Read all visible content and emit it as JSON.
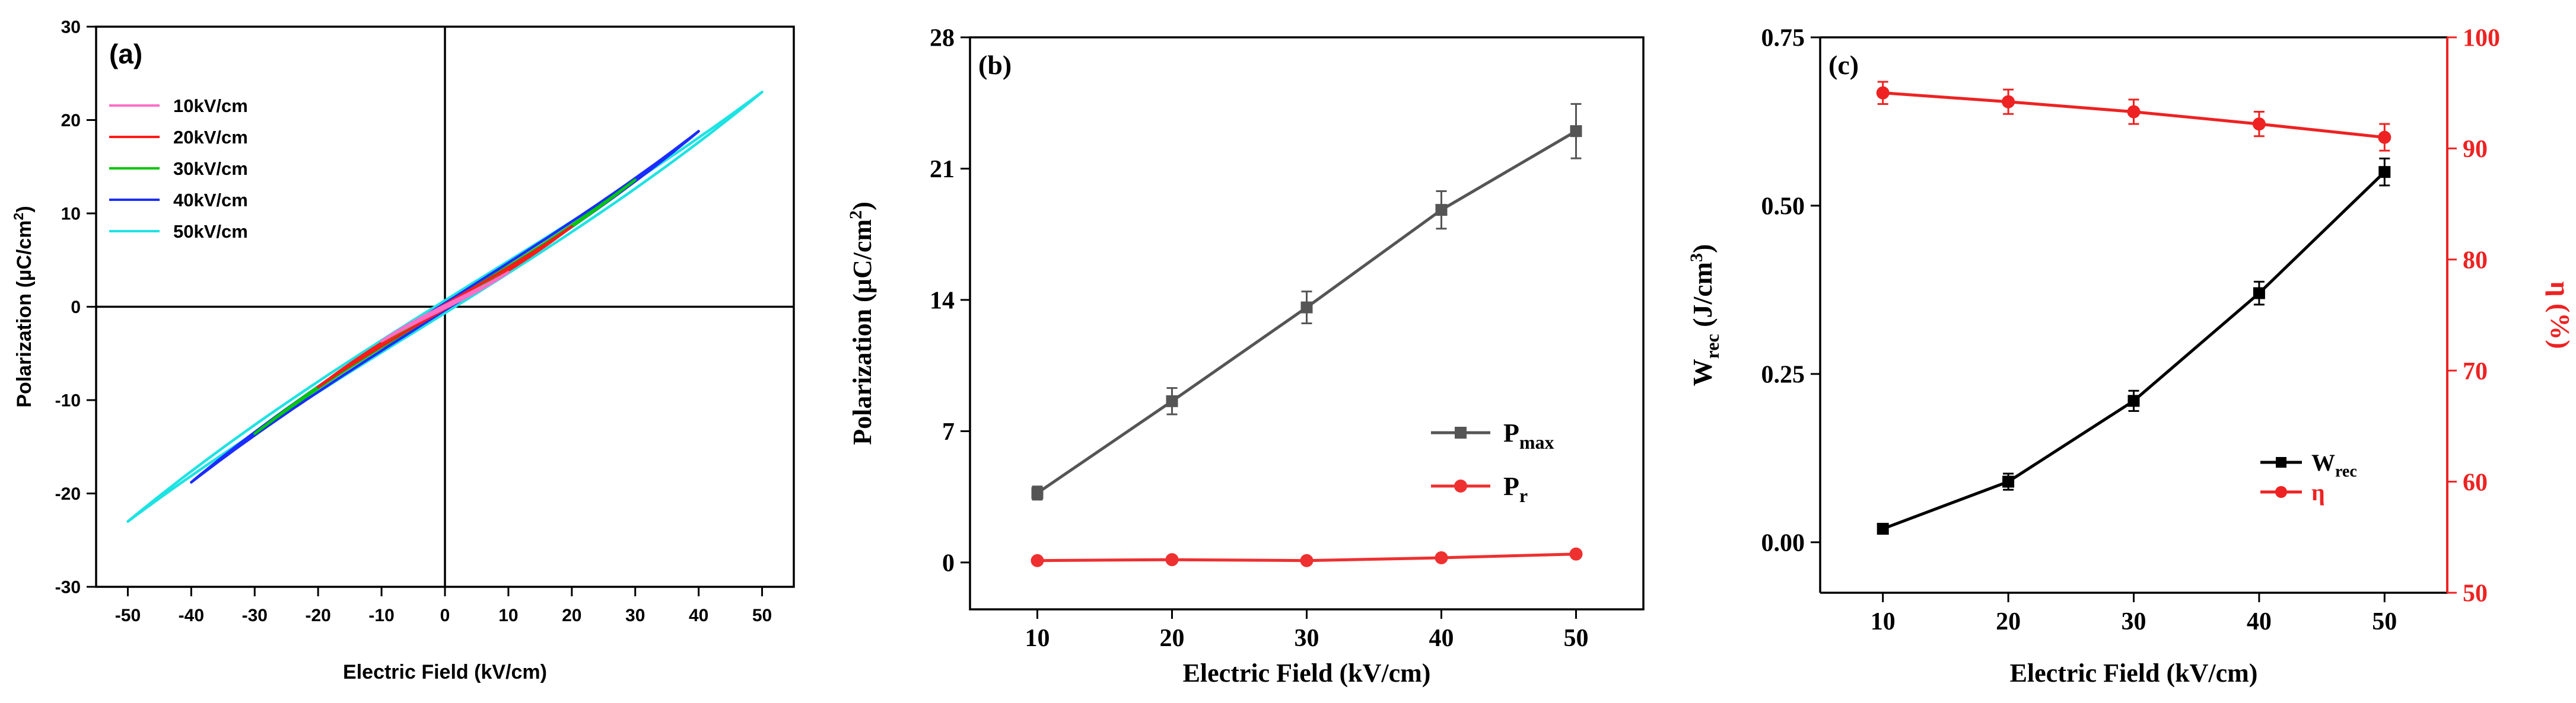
{
  "chart_data": [
    {
      "type": "line",
      "panel_label": "(a)",
      "xlabel": "Electric Field (kV/cm)",
      "ylabel": "Polarization (µC/cm²)",
      "ylabel_base": "Polarization (µC/cm",
      "ylabel_sup": "2",
      "ylabel_tail": ")",
      "xlim": [
        -55,
        55
      ],
      "ylim": [
        -30,
        30
      ],
      "xticks": [
        -50,
        -40,
        -30,
        -20,
        -10,
        0,
        10,
        20,
        30,
        40,
        50
      ],
      "yticks": [
        -30,
        -20,
        -10,
        0,
        10,
        20,
        30
      ],
      "series": [
        {
          "name": "10kV/cm",
          "color": "#ff6ec7",
          "emax": 10,
          "pmax": 3.7,
          "pr": 0.1
        },
        {
          "name": "20kV/cm",
          "color": "#ff1a1a",
          "emax": 20,
          "pmax": 8.6,
          "pr": 0.15
        },
        {
          "name": "30kV/cm",
          "color": "#00c800",
          "emax": 30,
          "pmax": 13.6,
          "pr": 0.1
        },
        {
          "name": "40kV/cm",
          "color": "#1a2cff",
          "emax": 40,
          "pmax": 18.8,
          "pr": 0.25
        },
        {
          "name": "50kV/cm",
          "color": "#1de3e3",
          "emax": 50,
          "pmax": 23.0,
          "pr": 0.45
        }
      ]
    },
    {
      "type": "line",
      "panel_label": "(b)",
      "xlabel": "Electric Field (kV/cm)",
      "ylabel": "Polarization (µC/cm²)",
      "ylabel_base": "Polarization (µC/cm",
      "ylabel_sup": "2",
      "ylabel_tail": ")",
      "xlim": [
        5,
        55
      ],
      "ylim": [
        -2.5,
        28
      ],
      "xticks": [
        10,
        20,
        30,
        40,
        50
      ],
      "yticks": [
        0,
        7,
        14,
        21,
        28
      ],
      "x": [
        10,
        20,
        30,
        40,
        50
      ],
      "series": [
        {
          "name": "Pmax",
          "label_main": "P",
          "label_sub": "max",
          "color": "#555555",
          "marker": "square",
          "values": [
            3.7,
            8.6,
            13.6,
            18.8,
            23.0
          ],
          "errors": [
            0.35,
            0.7,
            0.85,
            1.0,
            1.45
          ]
        },
        {
          "name": "Pr",
          "label_main": "P",
          "label_sub": "r",
          "color": "#ee3030",
          "marker": "circle",
          "values": [
            0.1,
            0.15,
            0.1,
            0.25,
            0.45
          ],
          "errors": [
            0,
            0,
            0,
            0,
            0
          ]
        }
      ]
    },
    {
      "type": "line",
      "panel_label": "(c)",
      "xlabel": "Electric Field (kV/cm)",
      "ylabel_left": "Wrec (J/cm³)",
      "ylabel_left_main": "W",
      "ylabel_left_sub": "rec",
      "ylabel_left_mid": " (J/cm",
      "ylabel_left_sup": "3",
      "ylabel_left_tail": ")",
      "ylabel_right": "η (%)",
      "xlim": [
        5,
        55
      ],
      "ylim_left": [
        -0.075,
        0.75
      ],
      "ylim_right": [
        50,
        100
      ],
      "xticks": [
        10,
        20,
        30,
        40,
        50
      ],
      "yticks_left": [
        "0.00",
        "0.25",
        "0.50",
        "0.75"
      ],
      "yticks_right": [
        50,
        60,
        70,
        80,
        90,
        100
      ],
      "x": [
        10,
        20,
        30,
        40,
        50
      ],
      "series": [
        {
          "name": "Wrec",
          "label_main": "W",
          "label_sub": "rec",
          "color": "#000000",
          "axis": "left",
          "marker": "square",
          "values": [
            0.02,
            0.09,
            0.21,
            0.37,
            0.55
          ],
          "errors": [
            0.006,
            0.012,
            0.015,
            0.017,
            0.02
          ]
        },
        {
          "name": "η",
          "label_main": "η",
          "label_sub": "",
          "color": "#ee2222",
          "axis": "right",
          "marker": "circle",
          "values": [
            95.0,
            94.2,
            93.3,
            92.2,
            91.0
          ],
          "errors": [
            1.0,
            1.1,
            1.1,
            1.1,
            1.2
          ]
        }
      ]
    }
  ]
}
